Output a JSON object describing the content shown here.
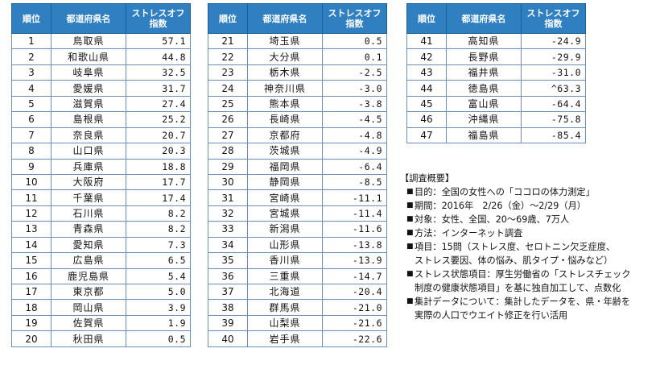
{
  "headers": {
    "rank": "順位",
    "pref": "都道府県名",
    "score_l1": "ストレスオフ",
    "score_l2": "指数"
  },
  "table1": [
    {
      "rank": "1",
      "pref": "鳥取県",
      "value": "57.1"
    },
    {
      "rank": "2",
      "pref": "和歌山県",
      "value": "44.8"
    },
    {
      "rank": "3",
      "pref": "岐阜県",
      "value": "32.5"
    },
    {
      "rank": "4",
      "pref": "愛媛県",
      "value": "31.7"
    },
    {
      "rank": "5",
      "pref": "滋賀県",
      "value": "27.4"
    },
    {
      "rank": "6",
      "pref": "島根県",
      "value": "25.2"
    },
    {
      "rank": "7",
      "pref": "奈良県",
      "value": "20.7"
    },
    {
      "rank": "8",
      "pref": "山口県",
      "value": "20.3"
    },
    {
      "rank": "9",
      "pref": "兵庫県",
      "value": "18.8"
    },
    {
      "rank": "10",
      "pref": "大阪府",
      "value": "17.7"
    },
    {
      "rank": "11",
      "pref": "千葉県",
      "value": "17.4"
    },
    {
      "rank": "12",
      "pref": "石川県",
      "value": "8.2"
    },
    {
      "rank": "13",
      "pref": "青森県",
      "value": "8.2"
    },
    {
      "rank": "14",
      "pref": "愛知県",
      "value": "7.3"
    },
    {
      "rank": "15",
      "pref": "広島県",
      "value": "6.5"
    },
    {
      "rank": "16",
      "pref": "鹿児島県",
      "value": "5.4"
    },
    {
      "rank": "17",
      "pref": "東京都",
      "value": "5.0"
    },
    {
      "rank": "18",
      "pref": "岡山県",
      "value": "3.9"
    },
    {
      "rank": "19",
      "pref": "佐賀県",
      "value": "1.9"
    },
    {
      "rank": "20",
      "pref": "秋田県",
      "value": "0.5"
    }
  ],
  "table2": [
    {
      "rank": "21",
      "pref": "埼玉県",
      "value": "0.5"
    },
    {
      "rank": "22",
      "pref": "大分県",
      "value": "0.1"
    },
    {
      "rank": "23",
      "pref": "栃木県",
      "value": "-2.5"
    },
    {
      "rank": "24",
      "pref": "神奈川県",
      "value": "-3.0"
    },
    {
      "rank": "25",
      "pref": "熊本県",
      "value": "-3.8"
    },
    {
      "rank": "26",
      "pref": "長崎県",
      "value": "-4.5"
    },
    {
      "rank": "27",
      "pref": "京都府",
      "value": "-4.8"
    },
    {
      "rank": "28",
      "pref": "茨城県",
      "value": "-4.9"
    },
    {
      "rank": "29",
      "pref": "福岡県",
      "value": "-6.4"
    },
    {
      "rank": "30",
      "pref": "静岡県",
      "value": "-8.5"
    },
    {
      "rank": "31",
      "pref": "宮崎県",
      "value": "-11.1"
    },
    {
      "rank": "32",
      "pref": "宮城県",
      "value": "-11.4"
    },
    {
      "rank": "33",
      "pref": "新潟県",
      "value": "-11.6"
    },
    {
      "rank": "34",
      "pref": "山形県",
      "value": "-13.8"
    },
    {
      "rank": "35",
      "pref": "香川県",
      "value": "-13.9"
    },
    {
      "rank": "36",
      "pref": "三重県",
      "value": "-14.7"
    },
    {
      "rank": "37",
      "pref": "北海道",
      "value": "-20.4"
    },
    {
      "rank": "38",
      "pref": "群馬県",
      "value": "-21.0"
    },
    {
      "rank": "39",
      "pref": "山梨県",
      "value": "-21.6"
    },
    {
      "rank": "40",
      "pref": "岩手県",
      "value": "-22.6"
    }
  ],
  "table3": [
    {
      "rank": "41",
      "pref": "高知県",
      "value": "-24.9"
    },
    {
      "rank": "42",
      "pref": "長野県",
      "value": "-29.9"
    },
    {
      "rank": "43",
      "pref": "福井県",
      "value": "-31.0"
    },
    {
      "rank": "44",
      "pref": "徳島県",
      "value": "^63.3"
    },
    {
      "rank": "45",
      "pref": "富山県",
      "value": "-64.4"
    },
    {
      "rank": "46",
      "pref": "沖縄県",
      "value": "-75.8"
    },
    {
      "rank": "47",
      "pref": "福島県",
      "value": "-85.4"
    }
  ],
  "survey": {
    "title": "【調査概要】",
    "bullet": "■",
    "items": [
      {
        "lines": [
          "目的：全国の女性への「ココロの体力測定」"
        ]
      },
      {
        "lines": [
          "期間：2016年　2/26（金）～2/29（月）"
        ]
      },
      {
        "lines": [
          "対象：女性、全国、20～69歳、7万人"
        ]
      },
      {
        "lines": [
          "方法：インターネット調査"
        ]
      },
      {
        "lines": [
          "項目：15問（ストレス度、セロトニン欠乏症度、",
          "ストレス要因、体の悩み、肌タイプ・悩みなど）"
        ]
      },
      {
        "lines": [
          "ストレス状態項目：厚生労働省の「ストレスチェック",
          "制度の健康状態項目」を基に独自加工して、点数化"
        ]
      },
      {
        "lines": [
          "集計データについて：集計したデータを、県・年齢を",
          "実際の人口でウエイト修正を行い活用"
        ]
      }
    ]
  }
}
